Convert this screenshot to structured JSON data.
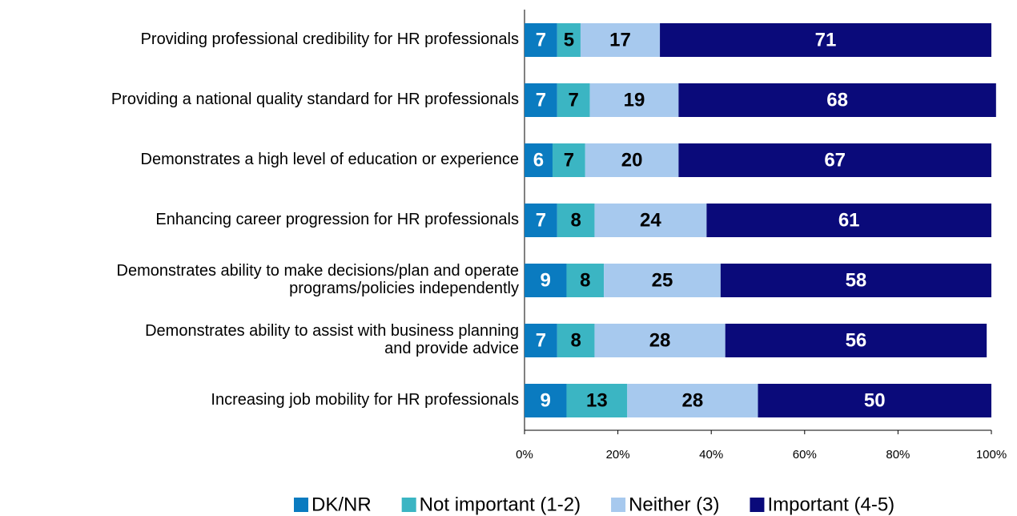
{
  "chart_data": {
    "type": "stacked-bar-horizontal",
    "categories": [
      "Providing professional credibility for HR professionals",
      "Providing a national quality standard for HR professionals",
      "Demonstrates a high level of education or experience",
      "Enhancing career progression for HR professionals",
      "Demonstrates ability to make decisions/plan and operate\nprograms/policies independently",
      "Demonstrates ability to assist with business planning\nand provide advice",
      "Increasing job mobility for HR professionals"
    ],
    "series": [
      {
        "name": "DK/NR",
        "color": "#0a7bc0",
        "values": [
          7,
          7,
          6,
          7,
          9,
          7,
          9
        ]
      },
      {
        "name": "Not important (1-2)",
        "color": "#3bb5c3",
        "values": [
          5,
          7,
          7,
          8,
          8,
          8,
          13
        ]
      },
      {
        "name": "Neither (3)",
        "color": "#a7c9ee",
        "values": [
          17,
          19,
          20,
          24,
          25,
          28,
          28
        ]
      },
      {
        "name": "Important (4-5)",
        "color": "#0a0a7a",
        "values": [
          71,
          68,
          67,
          61,
          58,
          56,
          50
        ]
      }
    ],
    "xlim": [
      0,
      100
    ],
    "xticks": [
      {
        "value": 0,
        "label": "0%"
      },
      {
        "value": 20,
        "label": "20%"
      },
      {
        "value": 40,
        "label": "40%"
      },
      {
        "value": 60,
        "label": "60%"
      },
      {
        "value": 80,
        "label": "80%"
      },
      {
        "value": 100,
        "label": "100%"
      }
    ],
    "legend": "bottom"
  }
}
